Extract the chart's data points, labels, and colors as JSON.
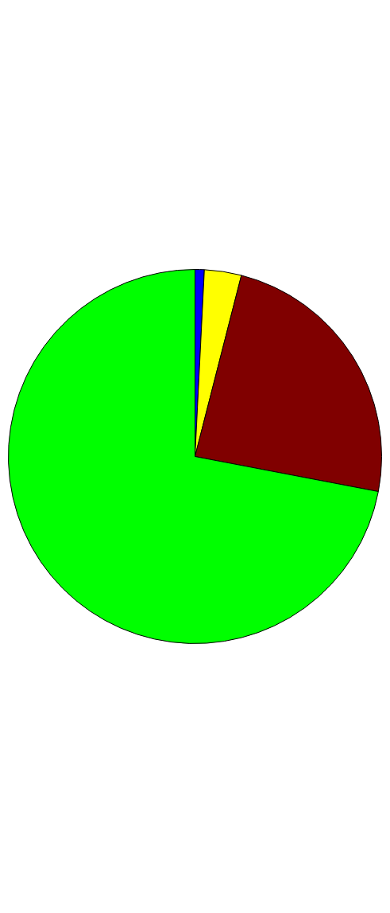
{
  "chart_data": {
    "type": "pie",
    "categories": [
      null,
      null,
      null,
      null
    ],
    "values": [
      0.8,
      3.2,
      24,
      72
    ],
    "colors": [
      "#0000ff",
      "#ffff00",
      "#800000",
      "#00ff00"
    ],
    "legend": false
  }
}
